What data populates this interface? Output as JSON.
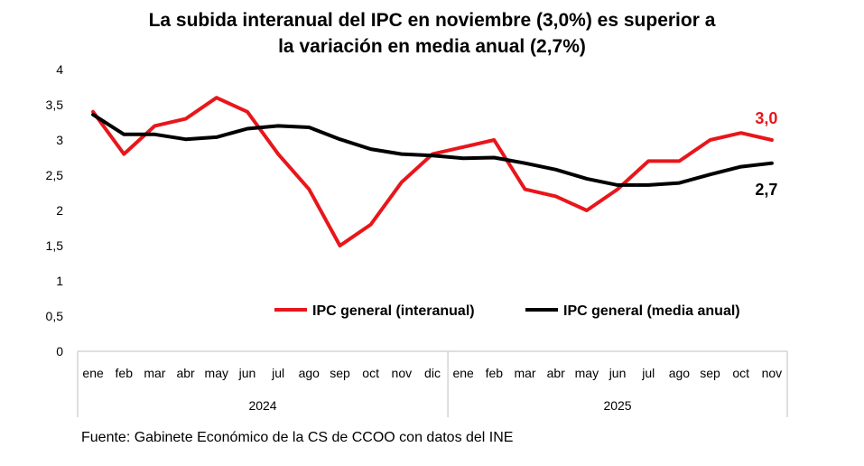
{
  "title_line1": "La subida interanual del IPC en noviembre (3,0%) es superior a",
  "title_line2": "la variación en media anual (2,7%)",
  "source": "Fuente: Gabinete Económico de la CS de CCOO con datos del INE",
  "colors": {
    "interanual": "#e8161b",
    "media": "#000000",
    "axis": "#bfbfbf"
  },
  "chart_data": {
    "type": "line",
    "categories": [
      "ene",
      "feb",
      "mar",
      "abr",
      "may",
      "jun",
      "jul",
      "ago",
      "sep",
      "oct",
      "nov",
      "dic",
      "ene",
      "feb",
      "mar",
      "abr",
      "may",
      "jun",
      "jul",
      "ago",
      "sep",
      "oct",
      "nov"
    ],
    "year_groups": [
      {
        "label": "2024",
        "start": 0,
        "end": 11
      },
      {
        "label": "2025",
        "start": 12,
        "end": 22
      }
    ],
    "series": [
      {
        "name": "IPC general (interanual)",
        "color": "#e8161b",
        "values": [
          3.4,
          2.8,
          3.2,
          3.3,
          3.6,
          3.4,
          2.8,
          2.3,
          1.5,
          1.8,
          2.4,
          2.8,
          2.9,
          3.0,
          2.3,
          2.2,
          2.0,
          2.3,
          2.7,
          2.7,
          3.0,
          3.1,
          3.0
        ],
        "end_label": "3,0"
      },
      {
        "name": "IPC general (media anual)",
        "color": "#000000",
        "values": [
          3.36,
          3.08,
          3.08,
          3.01,
          3.04,
          3.16,
          3.2,
          3.18,
          3.01,
          2.87,
          2.8,
          2.78,
          2.74,
          2.75,
          2.67,
          2.58,
          2.45,
          2.36,
          2.36,
          2.39,
          2.51,
          2.62,
          2.67
        ],
        "end_label": "2,7"
      }
    ],
    "y_ticks": [
      "0",
      "0,5",
      "1",
      "1,5",
      "2",
      "2,5",
      "3",
      "3,5",
      "4"
    ],
    "ylim": [
      0,
      4
    ],
    "legend_position": "inside-bottom"
  }
}
